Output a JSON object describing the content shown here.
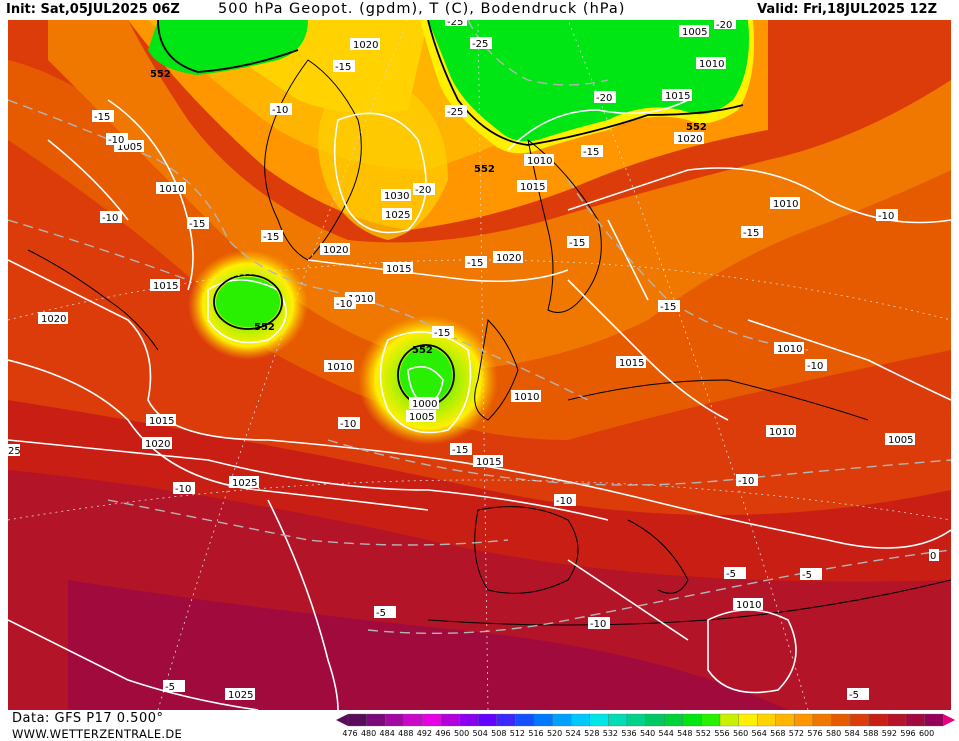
{
  "header": {
    "init": "Init: Sat,05JUL2025 06Z",
    "title": "500 hPa Geopot. (gpdm), T (C), Bodendruck (hPa)",
    "valid": "Valid: Fri,18JUL2025 12Z"
  },
  "footer": {
    "data_source": "Data: GFS P17 0.500°",
    "website": "WWW.WETTERZENTRALE.DE"
  },
  "legend": {
    "values": [
      "476",
      "480",
      "484",
      "488",
      "492",
      "496",
      "500",
      "504",
      "508",
      "512",
      "516",
      "520",
      "524",
      "528",
      "532",
      "536",
      "540",
      "544",
      "548",
      "552",
      "556",
      "560",
      "564",
      "568",
      "572",
      "576",
      "580",
      "584",
      "588",
      "592",
      "596",
      "600"
    ],
    "colors": [
      "#5a0a5a",
      "#7a0a7a",
      "#a00aa0",
      "#c80ac8",
      "#e600e6",
      "#b400dc",
      "#8c00f0",
      "#6400ff",
      "#3c28ff",
      "#1450ff",
      "#0078ff",
      "#00a0ff",
      "#00c8ff",
      "#00e6e6",
      "#00dcb4",
      "#00d28c",
      "#00c864",
      "#00d23c",
      "#00e614",
      "#28f000",
      "#c8f000",
      "#fff000",
      "#ffd200",
      "#ffb400",
      "#ff9600",
      "#f07800",
      "#e65a00",
      "#dc3c0a",
      "#c81e14",
      "#b41428",
      "#a00a3c",
      "#96005a"
    ]
  },
  "pressure_labels": [
    "1020",
    "1005",
    "1010",
    "1015",
    "1020",
    "1030",
    "1025",
    "1020",
    "1015",
    "1010",
    "1015",
    "1020",
    "1010",
    "1015",
    "1010",
    "1015",
    "1020",
    "1010",
    "1005",
    "1000",
    "1015",
    "1020",
    "1025",
    "1010",
    "1015",
    "1010",
    "1010",
    "1005",
    "1010",
    "1025",
    "1005",
    "1010"
  ],
  "temp_labels": [
    "-25",
    "-15",
    "-10",
    "-15",
    "-10",
    "-15",
    "-25",
    "-20",
    "-15",
    "-20",
    "-15",
    "-10",
    "-15",
    "-15",
    "-10",
    "-15",
    "-15",
    "-15",
    "-10",
    "-10",
    "-15",
    "-10",
    "-10",
    "-5",
    "-10",
    "-5",
    "-5",
    "-5",
    "-10",
    "-5",
    "-20",
    "-25",
    "-10"
  ],
  "geopot_labels": [
    "552",
    "552",
    "552",
    "552",
    "552"
  ],
  "edge_labels": [
    "25",
    "0"
  ]
}
